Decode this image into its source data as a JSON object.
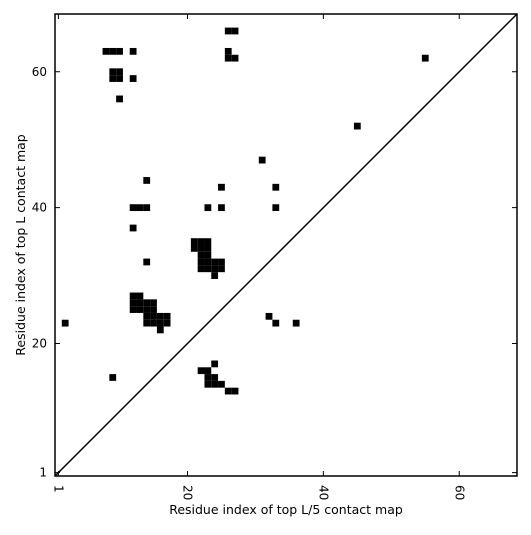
{
  "chart_data": {
    "type": "heatmap",
    "title": "",
    "xlabel": "Residue index of top L/5 contact map",
    "ylabel": "Residue index of top L contact map",
    "xlim": [
      0.5,
      68.5
    ],
    "ylim": [
      0.5,
      68.5
    ],
    "xticks": [
      1,
      20,
      40,
      60
    ],
    "yticks": [
      1,
      20,
      40,
      60
    ],
    "xtick_rotation": -90,
    "grid": false,
    "legend": "none",
    "diagonal_line": true,
    "cell_color": "#000000",
    "background_color": "#ffffff",
    "upper_cells": [
      [
        26,
        66
      ],
      [
        27,
        66
      ],
      [
        8,
        63
      ],
      [
        9,
        63
      ],
      [
        10,
        63
      ],
      [
        12,
        63
      ],
      [
        26,
        63
      ],
      [
        26,
        62
      ],
      [
        27,
        62
      ],
      [
        55,
        62
      ],
      [
        9,
        60
      ],
      [
        10,
        60
      ],
      [
        9,
        59
      ],
      [
        10,
        59
      ],
      [
        12,
        59
      ],
      [
        10,
        56
      ],
      [
        45,
        52
      ],
      [
        31,
        47
      ],
      [
        14,
        44
      ],
      [
        25,
        43
      ],
      [
        33,
        43
      ],
      [
        12,
        40
      ],
      [
        13,
        40
      ],
      [
        14,
        40
      ],
      [
        23,
        40
      ],
      [
        25,
        40
      ],
      [
        33,
        40
      ],
      [
        12,
        37
      ],
      [
        21,
        35
      ],
      [
        22,
        35
      ],
      [
        23,
        35
      ],
      [
        21,
        34
      ],
      [
        22,
        34
      ],
      [
        23,
        34
      ],
      [
        22,
        33
      ],
      [
        23,
        33
      ],
      [
        22,
        32
      ],
      [
        23,
        32
      ],
      [
        24,
        32
      ],
      [
        25,
        32
      ],
      [
        22,
        31
      ],
      [
        23,
        31
      ],
      [
        24,
        31
      ],
      [
        25,
        31
      ],
      [
        14,
        32
      ],
      [
        24,
        30
      ]
    ],
    "lower_cells": [
      [
        12,
        27
      ],
      [
        13,
        27
      ],
      [
        12,
        26
      ],
      [
        13,
        26
      ],
      [
        14,
        26
      ],
      [
        15,
        26
      ],
      [
        12,
        25
      ],
      [
        13,
        25
      ],
      [
        14,
        25
      ],
      [
        15,
        25
      ],
      [
        14,
        24
      ],
      [
        15,
        24
      ],
      [
        16,
        24
      ],
      [
        17,
        24
      ],
      [
        14,
        23
      ],
      [
        15,
        23
      ],
      [
        16,
        23
      ],
      [
        17,
        23
      ],
      [
        16,
        22
      ],
      [
        2,
        23
      ],
      [
        32,
        24
      ],
      [
        33,
        23
      ],
      [
        36,
        23
      ],
      [
        24,
        17
      ],
      [
        22,
        16
      ],
      [
        23,
        16
      ],
      [
        9,
        15
      ],
      [
        23,
        15
      ],
      [
        24,
        15
      ],
      [
        23,
        14
      ],
      [
        24,
        14
      ],
      [
        25,
        14
      ],
      [
        26,
        13
      ],
      [
        27,
        13
      ]
    ]
  }
}
